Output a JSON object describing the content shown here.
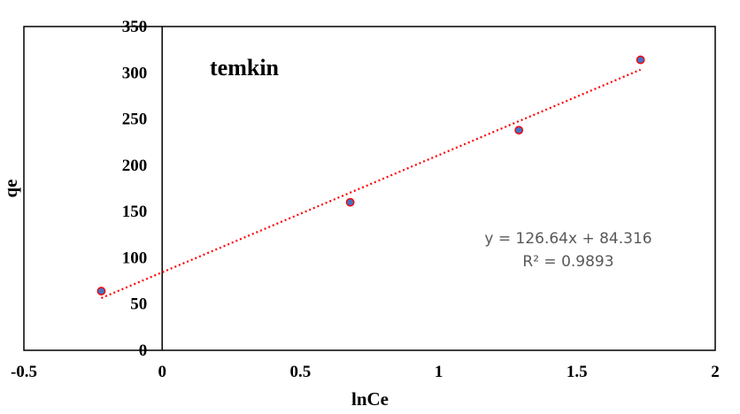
{
  "chart_data": {
    "type": "scatter",
    "title": "temkin",
    "xlabel": "lnCe",
    "ylabel": "qe",
    "xlim": [
      -0.5,
      2
    ],
    "ylim": [
      0,
      350
    ],
    "xticks": [
      -0.5,
      0,
      0.5,
      1,
      1.5,
      2
    ],
    "xtick_labels": [
      "-0.5",
      "0",
      "0.5",
      "1",
      "1.5",
      "2"
    ],
    "yticks": [
      0,
      50,
      100,
      150,
      200,
      250,
      300,
      350
    ],
    "ytick_labels": [
      "0",
      "50",
      "100",
      "150",
      "200",
      "250",
      "300",
      "350"
    ],
    "grid": false,
    "legend": "none",
    "series": [
      {
        "x": [
          -0.22,
          0.68,
          1.29,
          1.73
        ],
        "y": [
          64,
          160,
          238,
          314
        ],
        "marker_color": "#4472c4",
        "marker_edge_color": "#ff0000"
      }
    ],
    "trendline": {
      "type": "linear",
      "slope": 126.64,
      "intercept": 84.316,
      "x_range": [
        -0.22,
        1.73
      ],
      "color": "#ff0000",
      "style": "dotted"
    },
    "annotations": {
      "equation": "y = 126.64x + 84.316",
      "r_squared": "R² = 0.9893"
    },
    "colors": {
      "text_annotation": "#595959",
      "axis": "#000000"
    }
  }
}
